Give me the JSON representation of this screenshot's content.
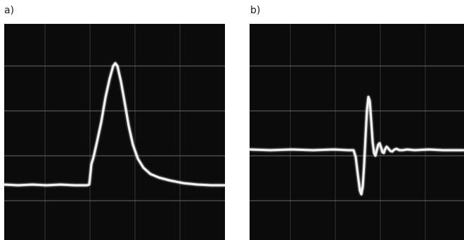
{
  "panels": [
    {
      "id": "a",
      "label": "a)",
      "trace": "single-positive-pulse"
    },
    {
      "id": "b",
      "label": "b)",
      "trace": "bipolar-oscillation"
    }
  ],
  "colors": {
    "screen": "#0b0b0b",
    "graticule": "#8a8a8a",
    "trace": "#f2f2f2",
    "label": "#1a1a1a"
  }
}
